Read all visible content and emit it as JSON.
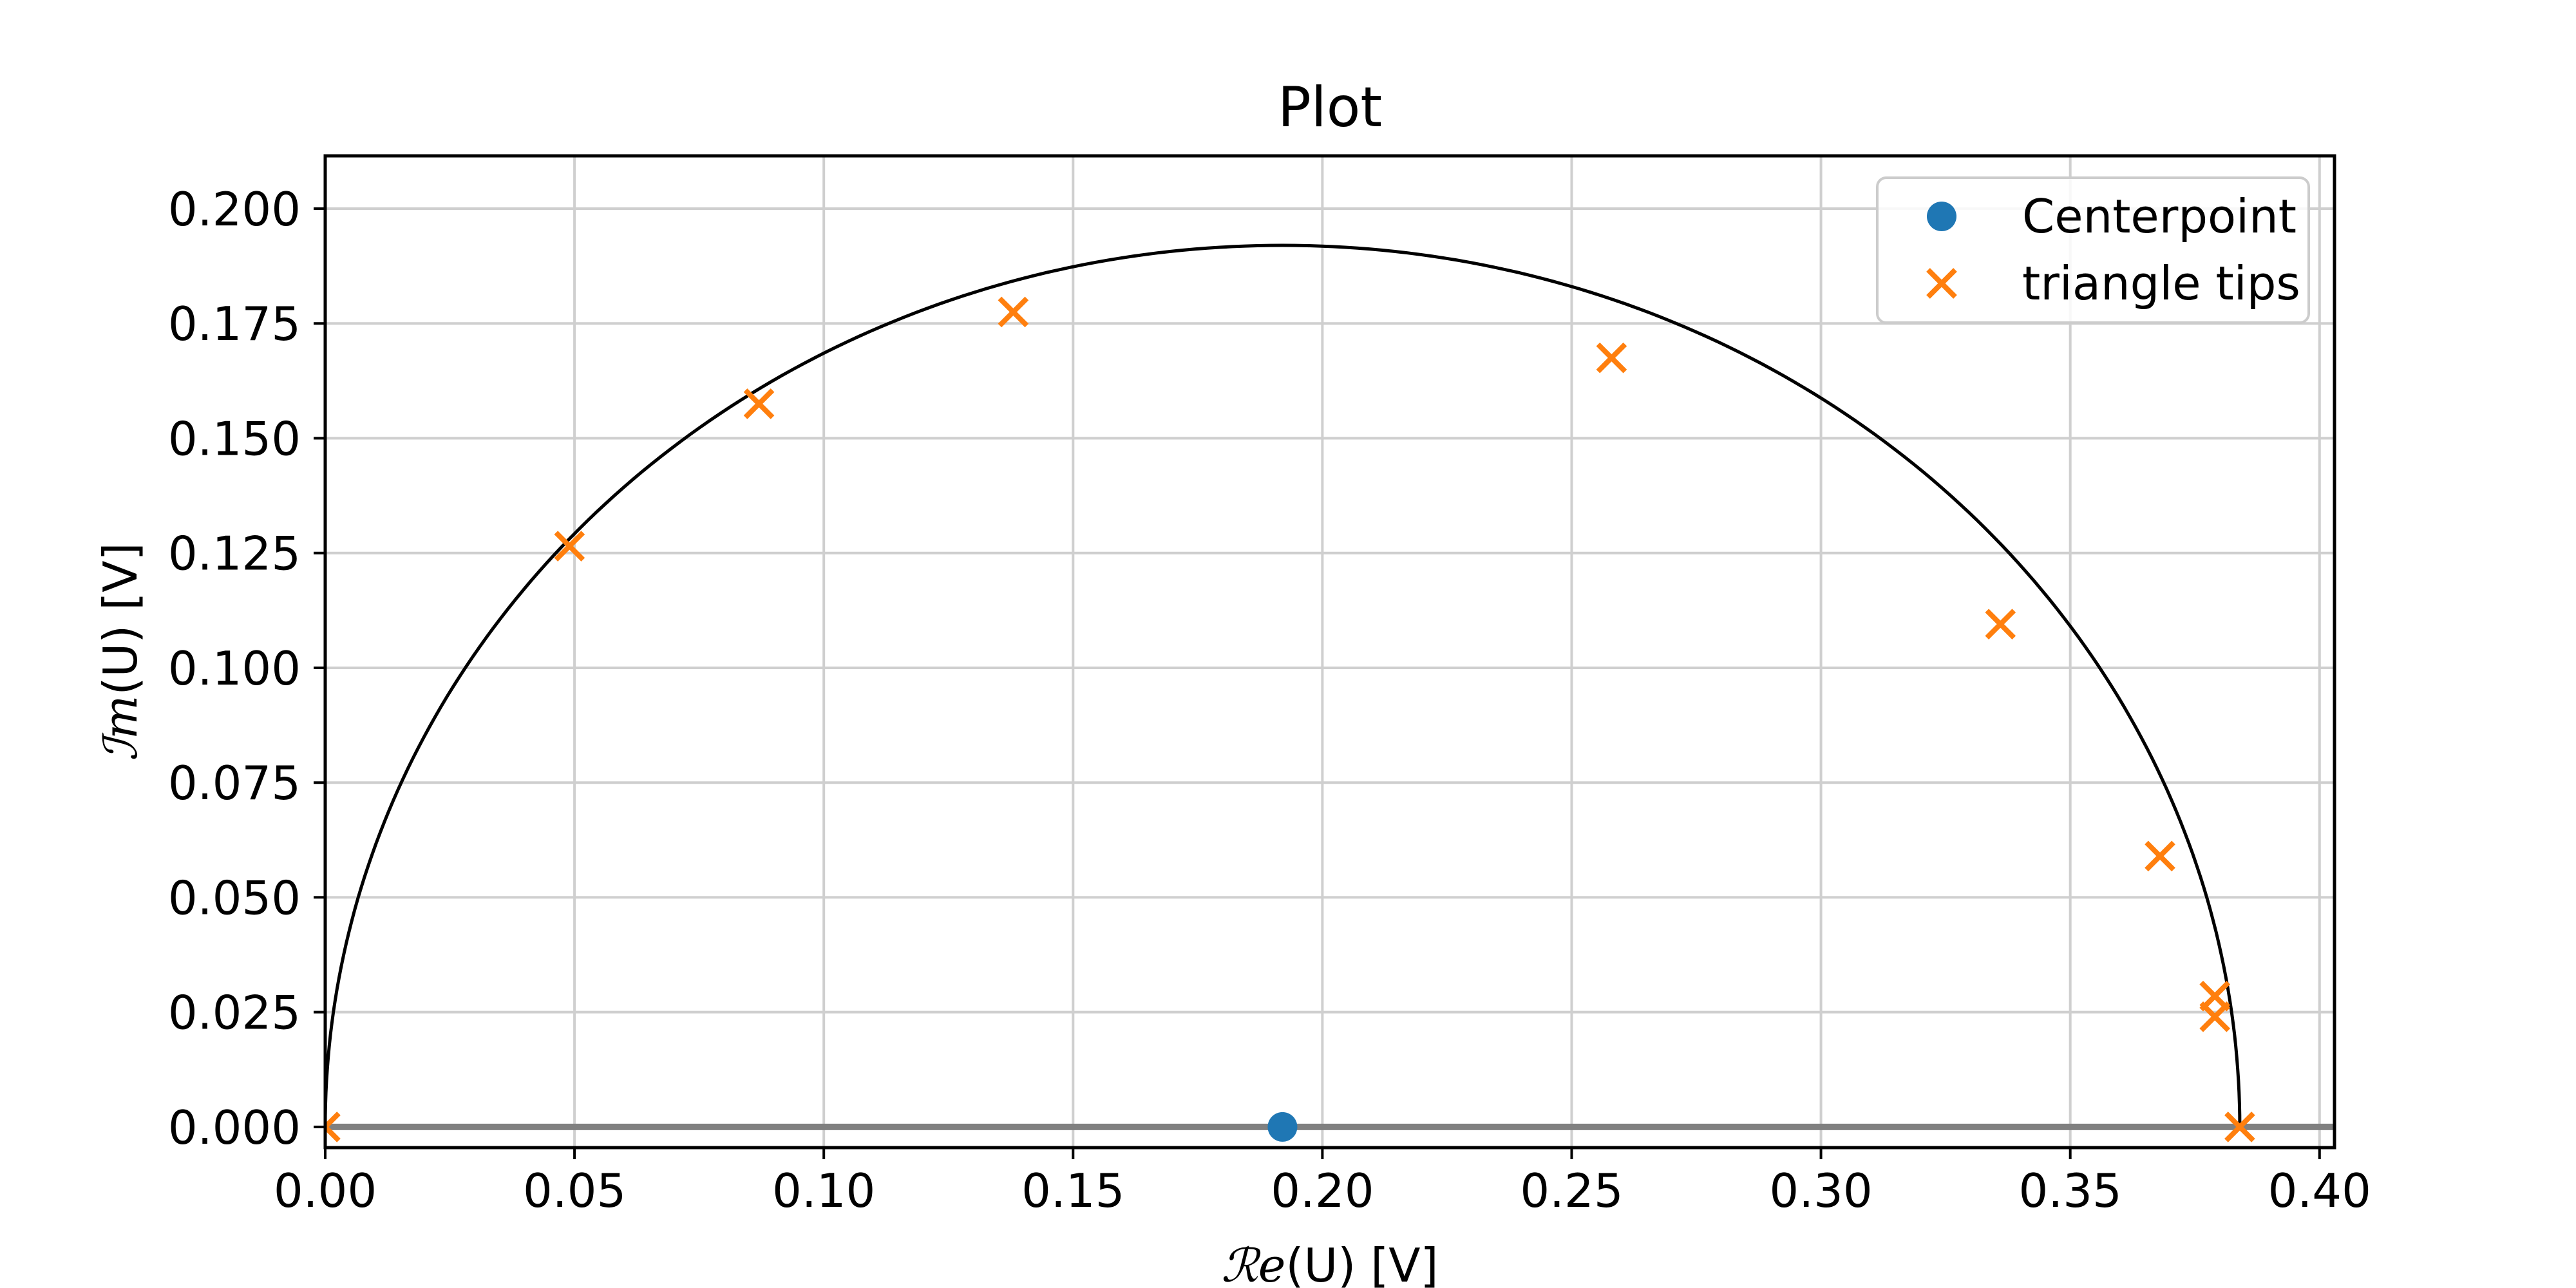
{
  "chart_data": {
    "type": "scatter",
    "title": "Plot",
    "xlabel_math": "ℛ𝑒",
    "xlabel_rest": "(U) [V]",
    "ylabel_math": "ℐ𝑚",
    "ylabel_rest": "(U) [V]",
    "xlim": [
      0.0,
      0.403
    ],
    "ylim": [
      -0.0045,
      0.2115
    ],
    "x_ticks": [
      0.0,
      0.05,
      0.1,
      0.15,
      0.2,
      0.25,
      0.3,
      0.35,
      0.4
    ],
    "x_tick_labels": [
      "0.00",
      "0.05",
      "0.10",
      "0.15",
      "0.20",
      "0.25",
      "0.30",
      "0.35",
      "0.40"
    ],
    "y_ticks": [
      0.0,
      0.025,
      0.05,
      0.075,
      0.1,
      0.125,
      0.15,
      0.175,
      0.2
    ],
    "y_tick_labels": [
      "0.000",
      "0.025",
      "0.050",
      "0.075",
      "0.100",
      "0.125",
      "0.150",
      "0.175",
      "0.200"
    ],
    "grid": true,
    "legend_position": "top-right",
    "semicircle": {
      "center": [
        0.192,
        0.0
      ],
      "radius": 0.192,
      "color": "#000000"
    },
    "baseline": {
      "y": 0.0,
      "x_range": [
        0.0,
        0.403
      ],
      "color": "#808080"
    },
    "series": [
      {
        "name": "Centerpoint",
        "marker": "circle",
        "color": "#1f77b4",
        "points": [
          [
            0.192,
            0.0
          ]
        ]
      },
      {
        "name": "triangle tips",
        "marker": "x",
        "color": "#ff7f0e",
        "points": [
          [
            0.0,
            0.0
          ],
          [
            0.049,
            0.1265
          ],
          [
            0.087,
            0.1575
          ],
          [
            0.138,
            0.1775
          ],
          [
            0.258,
            0.1675
          ],
          [
            0.336,
            0.1095
          ],
          [
            0.368,
            0.059
          ],
          [
            0.379,
            0.0285
          ],
          [
            0.379,
            0.024
          ],
          [
            0.384,
            0.0
          ]
        ]
      }
    ]
  }
}
